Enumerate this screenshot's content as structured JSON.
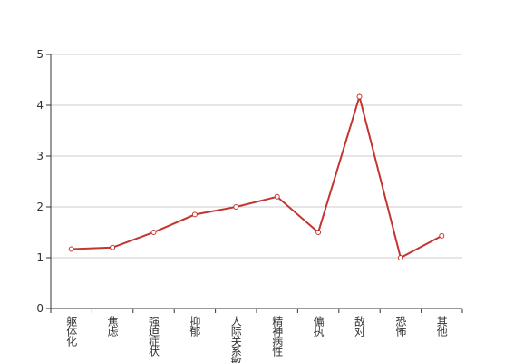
{
  "chart_data": {
    "type": "line",
    "categories": [
      "躯体化",
      "焦虑",
      "强迫症状",
      "抑郁",
      "人际关系敏感",
      "精神病性",
      "偏执",
      "敌对",
      "恐怖",
      "其他"
    ],
    "series": [
      {
        "color": "#c23531",
        "values": [
          1.17,
          1.2,
          1.5,
          1.85,
          2.0,
          2.2,
          1.5,
          4.17,
          1.0,
          1.43
        ]
      }
    ],
    "ylim": [
      0,
      5
    ],
    "yticks": [
      0,
      1,
      2,
      3,
      4,
      5
    ],
    "grid": true
  }
}
